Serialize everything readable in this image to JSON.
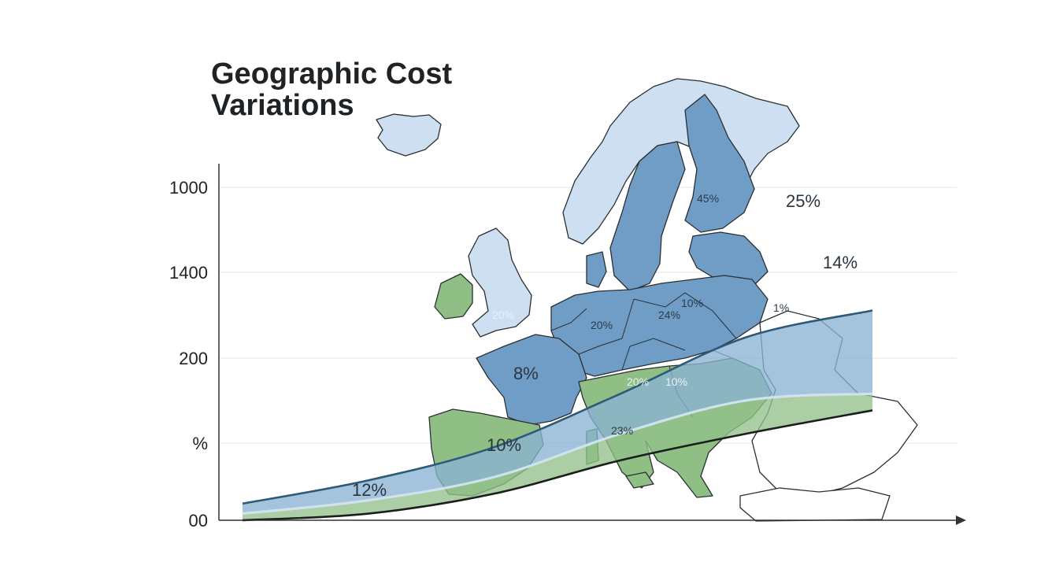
{
  "chart_data": {
    "type": "area",
    "title_lines": [
      "Geographic Cost",
      "Variations"
    ],
    "xlabel": "",
    "ylabel": "",
    "y_tick_labels": [
      "1000",
      "1400",
      "200",
      "%",
      "00"
    ],
    "grid": true,
    "background": "map of Europe",
    "series": [
      {
        "values": [
          0.05,
          0.12,
          0.22,
          0.38,
          0.55,
          0.63
        ]
      },
      {
        "values": [
          0.02,
          0.06,
          0.13,
          0.26,
          0.36,
          0.38
        ]
      },
      {
        "values": [
          0.0,
          0.02,
          0.08,
          0.18,
          0.26,
          0.33
        ]
      }
    ],
    "annotations": [
      "25%",
      "14%",
      "8%",
      "10%",
      "12%",
      "45%",
      "10%",
      "24%",
      "20%",
      "20%",
      "1%",
      "20%",
      "10%",
      "23%"
    ]
  },
  "colors": {
    "blue_band": "#8bb2d2",
    "green_band": "#93c08a",
    "dark_blue_line": "#2e5a78",
    "black_line": "#1a1f1c",
    "light_line": "#cfe2ee",
    "map_blue_dark": "#6f9dc6",
    "map_blue_light": "#cddff0",
    "map_green": "#8fbf85",
    "grid": "#e6e6e6",
    "axis": "#333333"
  }
}
